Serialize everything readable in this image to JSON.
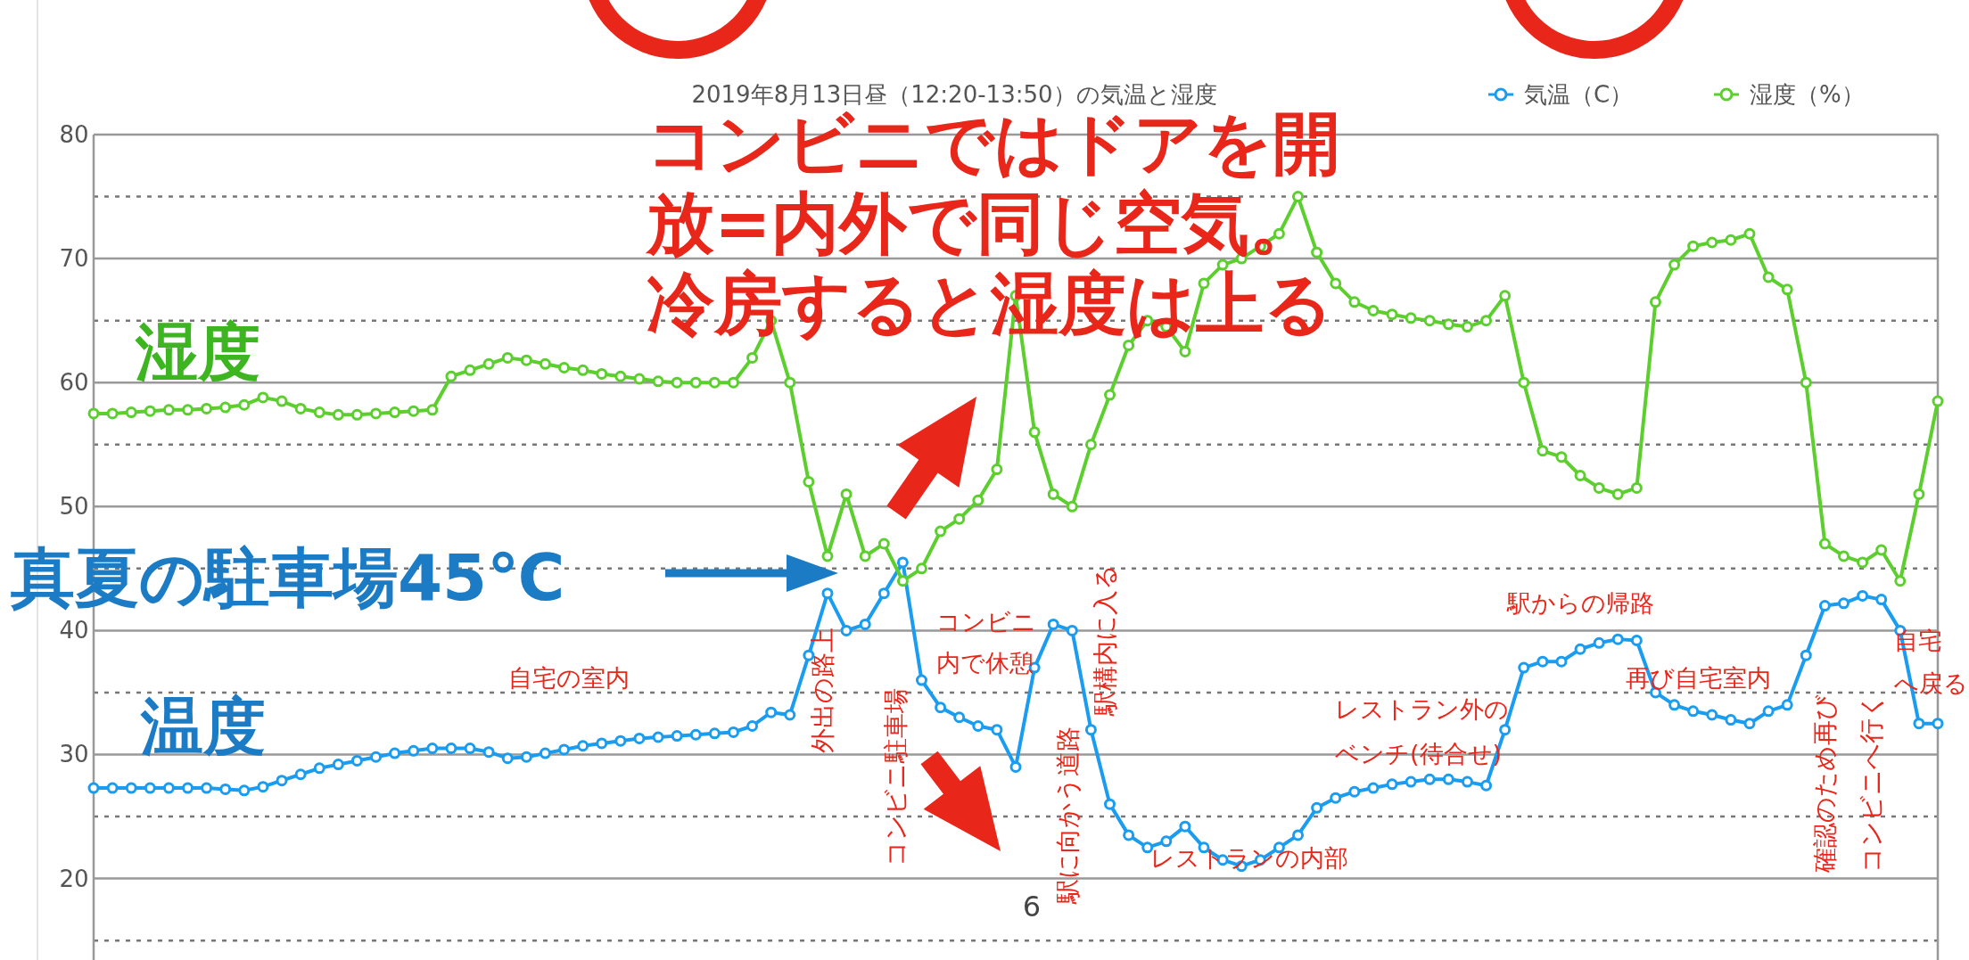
{
  "chart_data": {
    "type": "line",
    "title": "2019年8月13日昼（12:20-13:50）の気温と湿度",
    "categories": [
      null,
      null,
      null,
      null,
      null,
      null,
      null,
      null,
      null,
      null,
      null,
      null,
      null,
      null,
      null,
      null,
      null,
      null,
      null,
      null,
      null,
      null,
      null,
      null,
      null,
      null,
      null,
      null,
      null,
      null,
      null,
      null,
      null,
      null,
      null,
      null,
      null,
      null,
      null,
      null,
      null,
      null,
      null,
      null,
      null,
      null,
      null,
      null,
      null,
      null,
      null,
      null,
      null,
      null,
      null,
      null,
      null,
      null,
      null,
      null,
      null,
      null,
      null,
      null,
      null,
      null,
      null,
      null,
      null,
      null,
      null,
      null,
      null,
      null,
      null,
      null,
      null,
      null,
      null,
      null,
      null,
      null,
      null,
      null,
      null,
      null,
      null,
      null,
      null,
      null,
      null,
      null,
      null,
      null,
      null,
      null,
      null,
      null,
      null
    ],
    "series": [
      {
        "name": "気温（C）",
        "color": "#1a9cf0",
        "values": [
          27.3,
          27.3,
          27.3,
          27.3,
          27.3,
          27.3,
          27.3,
          27.2,
          27.1,
          27.4,
          27.9,
          28.4,
          28.9,
          29.2,
          29.5,
          29.8,
          30.1,
          30.3,
          30.5,
          30.5,
          30.5,
          30.2,
          29.7,
          29.8,
          30.1,
          30.4,
          30.7,
          30.9,
          31.1,
          31.3,
          31.4,
          31.5,
          31.6,
          31.7,
          31.8,
          32.3,
          33.4,
          33.2,
          38,
          43,
          40,
          40.5,
          43,
          45.5,
          36,
          33.8,
          33,
          32.3,
          32,
          29,
          37,
          40.5,
          40,
          32,
          26,
          23.5,
          22.5,
          23,
          24.2,
          22.5,
          21.5,
          21,
          21.5,
          22.5,
          23.5,
          25.7,
          26.5,
          27,
          27.3,
          27.6,
          27.8,
          28,
          28,
          27.8,
          27.5,
          32,
          37,
          37.5,
          37.5,
          38.5,
          39,
          39.3,
          39.2,
          35,
          34,
          33.5,
          33.2,
          32.8,
          32.5,
          33.5,
          34,
          38,
          42,
          42.2,
          42.8,
          42.5,
          40,
          32.5,
          32.5
        ]
      },
      {
        "name": "湿度（%）",
        "color": "#5ccf2e",
        "values": [
          57.5,
          57.5,
          57.6,
          57.7,
          57.8,
          57.8,
          57.9,
          58,
          58.2,
          58.8,
          58.5,
          57.9,
          57.6,
          57.4,
          57.4,
          57.5,
          57.6,
          57.7,
          57.8,
          60.5,
          61,
          61.5,
          62,
          61.8,
          61.5,
          61.2,
          61,
          60.7,
          60.5,
          60.3,
          60.1,
          60,
          60,
          60,
          60,
          62,
          65,
          60,
          52,
          46,
          51,
          46,
          47,
          44,
          45,
          48,
          49,
          50.5,
          53,
          67,
          56,
          51,
          50,
          55,
          59,
          63,
          65,
          64.5,
          62.5,
          68,
          69.5,
          70,
          71,
          72,
          75,
          70.5,
          68,
          66.5,
          65.8,
          65.5,
          65.2,
          65,
          64.7,
          64.5,
          65,
          67,
          60,
          54.5,
          54,
          52.5,
          51.5,
          51,
          51.5,
          66.5,
          69.5,
          71,
          71.3,
          71.5,
          72,
          68.5,
          67.5,
          60,
          47,
          46,
          45.5,
          46.5,
          44,
          51,
          58.5
        ]
      }
    ],
    "ylim": [
      13.5,
      80
    ],
    "yticks": [
      {
        "value": 15,
        "label": null
      },
      20,
      {
        "value": 25,
        "label": null
      },
      30,
      {
        "value": 35,
        "label": null
      },
      40,
      {
        "value": 45,
        "label": null
      },
      50,
      {
        "value": 55,
        "label": null
      },
      60,
      {
        "value": 65,
        "label": null
      },
      70,
      {
        "value": 75,
        "label": null
      },
      80
    ],
    "grid": true,
    "legend": "top right",
    "marker": "circle",
    "line_style": "solid",
    "annotations": [
      "コンビニではドアを開放=内外で同じ空気。冷房すると湿度は上る",
      "湿度",
      "温度",
      "真夏の駐車場45℃",
      "自宅の室内",
      "外出の路上",
      "コンビニ駐車場",
      "コンビニ内で休憩",
      "駅に向かう道路",
      "駅構内に入る",
      "レストランの内部",
      "レストラン外のベンチ(待合せ)",
      "駅からの帰路",
      "再び自宅室内",
      "確認のため再び",
      "コンビニへ行く",
      "自宅へ戻る",
      "6"
    ]
  }
}
